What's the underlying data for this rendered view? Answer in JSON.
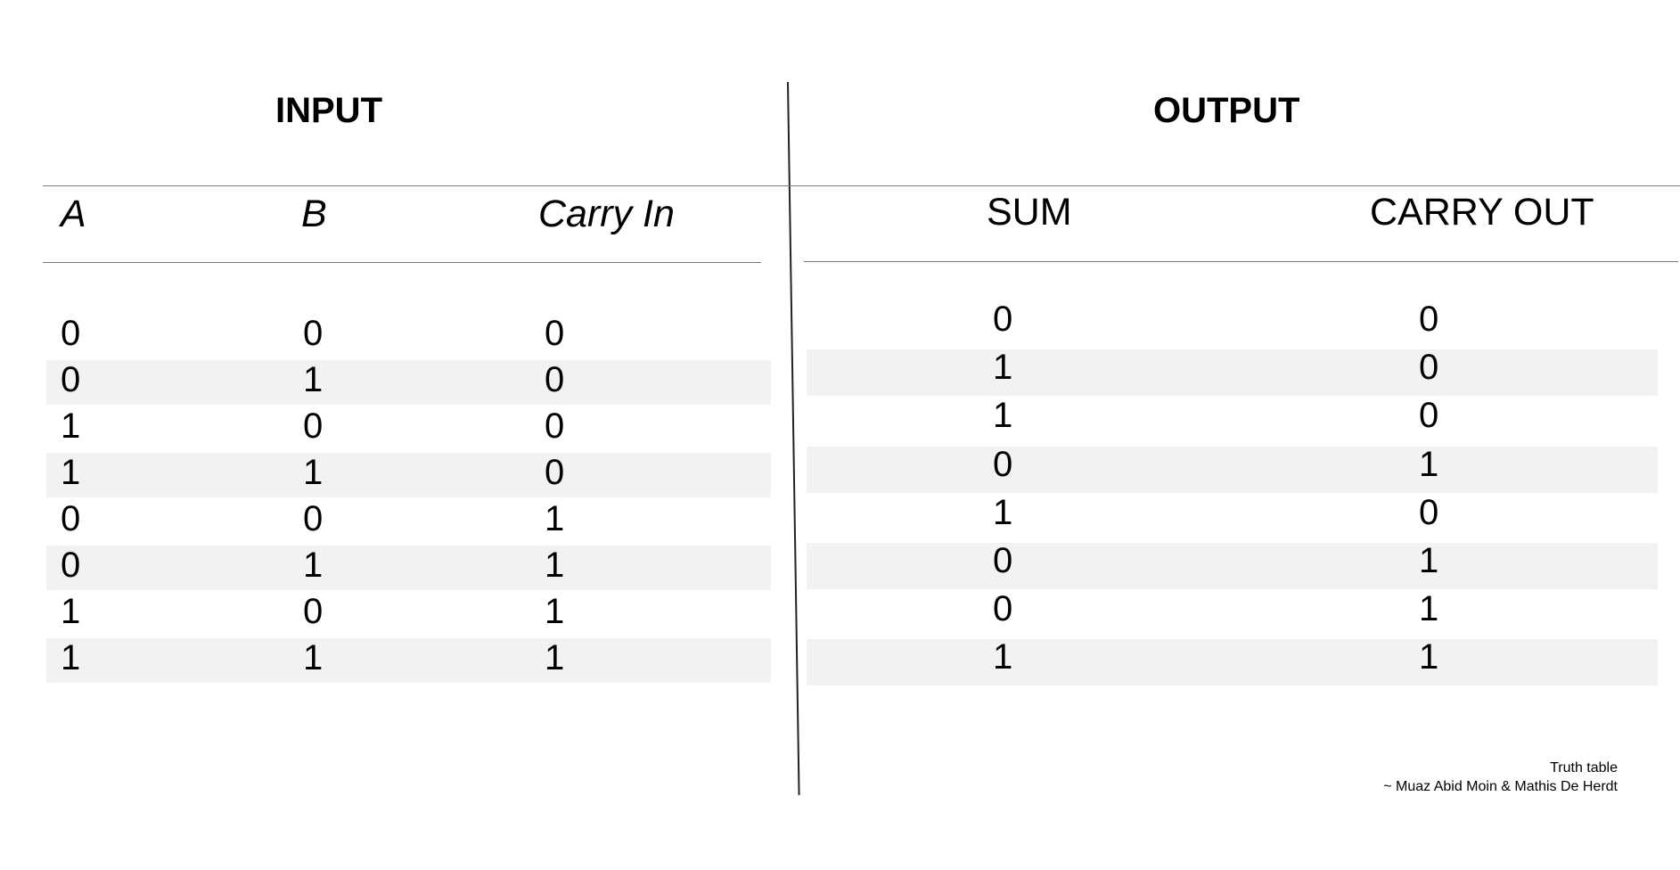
{
  "input": {
    "title": "INPUT",
    "headers": {
      "a": "A",
      "b": "B",
      "carry_in": "Carry In"
    },
    "rows": [
      [
        "0",
        "0",
        "0"
      ],
      [
        "0",
        "1",
        "0"
      ],
      [
        "1",
        "0",
        "0"
      ],
      [
        "1",
        "1",
        "0"
      ],
      [
        "0",
        "0",
        "1"
      ],
      [
        "0",
        "1",
        "1"
      ],
      [
        "1",
        "0",
        "1"
      ],
      [
        "1",
        "1",
        "1"
      ]
    ]
  },
  "output": {
    "title": "OUTPUT",
    "headers": {
      "sum": "SUM",
      "carry_out": "CARRY OUT"
    },
    "rows": [
      [
        "0",
        "0"
      ],
      [
        "1",
        "0"
      ],
      [
        "1",
        "0"
      ],
      [
        "0",
        "1"
      ],
      [
        "1",
        "0"
      ],
      [
        "0",
        "1"
      ],
      [
        "0",
        "1"
      ],
      [
        "1",
        "1"
      ]
    ]
  },
  "credit": {
    "line1": "Truth table",
    "line2": "~ Muaz Abid Moin & Mathis De Herdt"
  },
  "colors": {
    "stripe": "#f2f2f2",
    "rule": "#7a7a7a",
    "text": "#000000"
  }
}
